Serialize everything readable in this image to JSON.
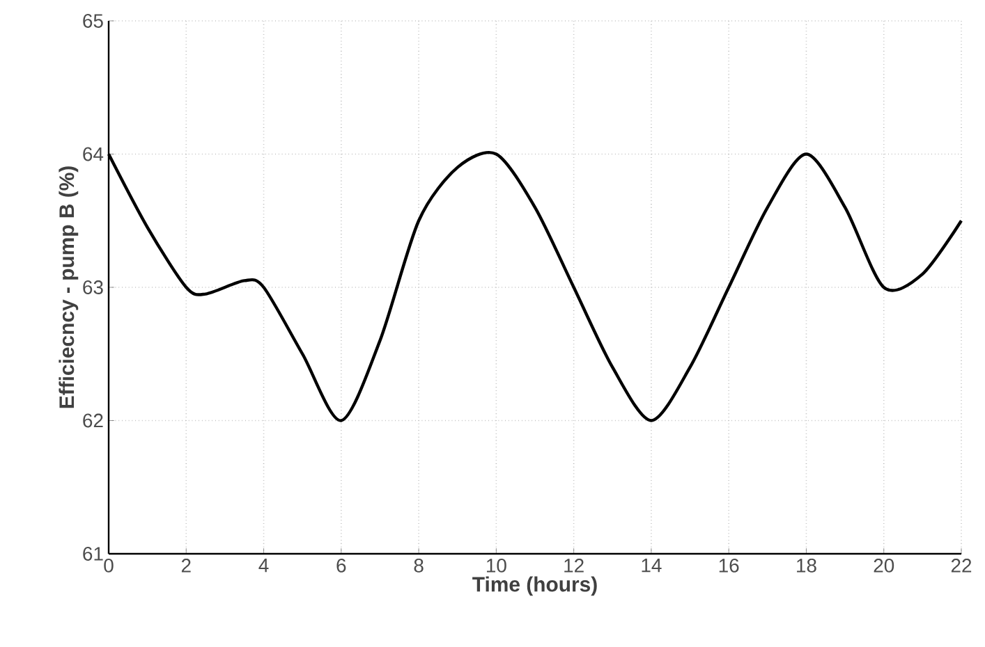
{
  "chart_data": {
    "type": "line",
    "xlabel": "Time (hours)",
    "ylabel": "Efficiecncy - pump B (%)",
    "x": [
      0,
      1,
      2,
      2.5,
      3.5,
      4,
      5,
      6,
      7,
      8,
      9,
      10,
      11,
      12,
      13,
      14,
      15,
      16,
      17,
      18,
      19,
      20,
      21,
      22
    ],
    "series": [
      {
        "color": "#000000",
        "values": [
          64,
          63.45,
          63.0,
          62.95,
          63.05,
          63.0,
          62.5,
          62.0,
          62.6,
          63.5,
          63.9,
          64.0,
          63.6,
          63.0,
          62.4,
          62.0,
          62.4,
          63.0,
          63.6,
          64.0,
          63.6,
          63.0,
          63.1,
          63.5
        ]
      }
    ],
    "xlim": [
      0,
      22
    ],
    "ylim": [
      61,
      65
    ],
    "xticks": [
      0,
      2,
      4,
      6,
      8,
      10,
      12,
      14,
      16,
      18,
      20,
      22
    ],
    "yticks": [
      61,
      62,
      63,
      64,
      65
    ],
    "grid": true,
    "marker": "none",
    "line_style": "solid"
  }
}
